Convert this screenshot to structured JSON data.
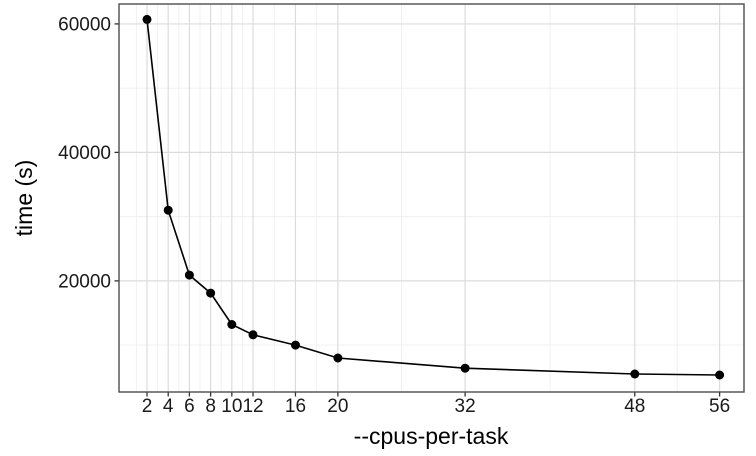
{
  "chart_data": {
    "type": "line",
    "xlabel": "--cpus-per-task",
    "ylabel": "time (s)",
    "x": [
      2,
      4,
      6,
      8,
      10,
      12,
      16,
      20,
      32,
      48,
      56
    ],
    "y": [
      60700,
      31000,
      20900,
      18100,
      13200,
      11600,
      10000,
      8000,
      6400,
      5500,
      5350
    ],
    "x_ticks": [
      2,
      4,
      6,
      8,
      10,
      12,
      16,
      20,
      32,
      48,
      56
    ],
    "x_tick_labels": [
      "2",
      "4",
      "6",
      "8",
      "10",
      "12",
      "16",
      "20",
      "32",
      "48",
      "56"
    ],
    "y_ticks": [
      20000,
      40000,
      60000
    ],
    "y_tick_labels": [
      "20000",
      "40000",
      "60000"
    ],
    "x_minor_ticks": [
      1,
      3,
      5,
      7,
      9,
      11,
      14,
      18,
      26,
      40,
      52
    ],
    "y_minor_ticks": [
      10000,
      30000,
      50000
    ],
    "xlim": [
      -0.64,
      58.3
    ],
    "ylim": [
      2700,
      63100
    ],
    "grid": true,
    "legend_position": "none",
    "colors": {
      "line": "#000000",
      "point": "#000000",
      "panel_border": "#4d4d4d",
      "grid_major": "#dcdcdc",
      "grid_minor": "#efefef",
      "tick_mark": "#333333",
      "background": "#ffffff"
    }
  }
}
